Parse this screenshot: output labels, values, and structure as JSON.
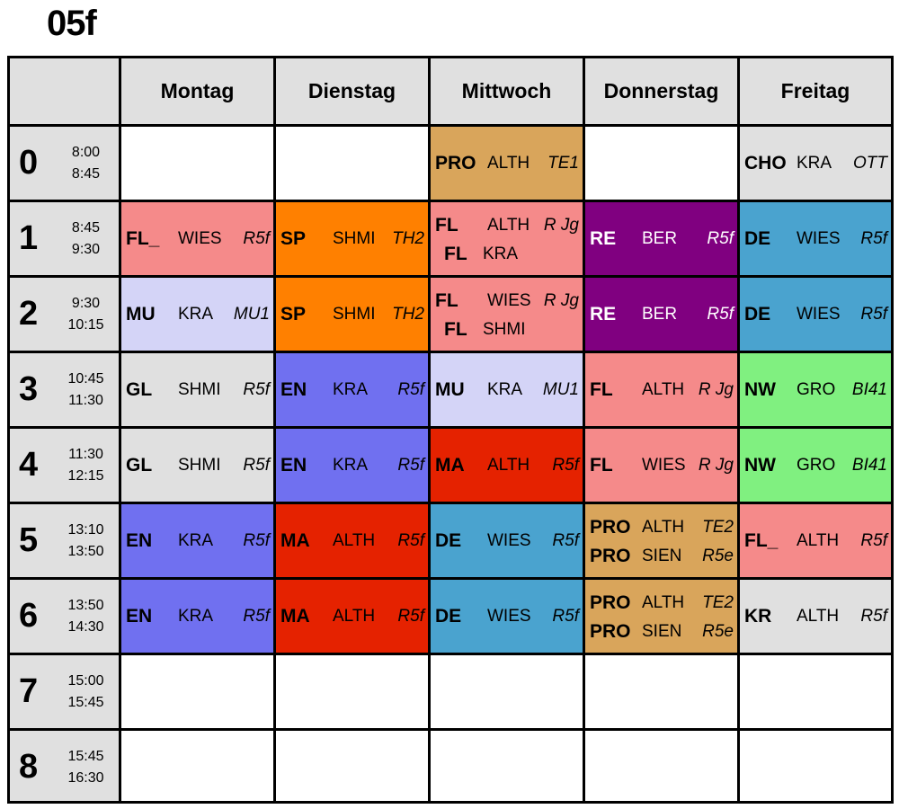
{
  "title": "05f",
  "days": [
    "Montag",
    "Dienstag",
    "Mittwoch",
    "Donnerstag",
    "Freitag"
  ],
  "periods": [
    {
      "num": "0",
      "start": "8:00",
      "end": "8:45"
    },
    {
      "num": "1",
      "start": "8:45",
      "end": "9:30"
    },
    {
      "num": "2",
      "start": "9:30",
      "end": "10:15"
    },
    {
      "num": "3",
      "start": "10:45",
      "end": "11:30"
    },
    {
      "num": "4",
      "start": "11:30",
      "end": "12:15"
    },
    {
      "num": "5",
      "start": "13:10",
      "end": "13:50"
    },
    {
      "num": "6",
      "start": "13:50",
      "end": "14:30"
    },
    {
      "num": "7",
      "start": "15:00",
      "end": "15:45"
    },
    {
      "num": "8",
      "start": "15:45",
      "end": "16:30"
    }
  ],
  "colors": {
    "grey": "#e0e0e0",
    "white": "#ffffff",
    "tan": "#d9a55b",
    "pink": "#f58a8a",
    "orange": "#ff8000",
    "purple": "#800080",
    "blue": "#4aa3cf",
    "lavender": "#d4d4f7",
    "periwinkle": "#7070f0",
    "red": "#e52200",
    "green": "#80f080"
  },
  "schedule": [
    [
      {
        "color": "white",
        "entries": []
      },
      {
        "color": "white",
        "entries": []
      },
      {
        "color": "tan",
        "entries": [
          {
            "subject": "PRO",
            "teacher": "ALTH",
            "room": "TE1"
          }
        ]
      },
      {
        "color": "white",
        "entries": []
      },
      {
        "color": "grey",
        "entries": [
          {
            "subject": "CHO",
            "teacher": "KRA",
            "room": "OTT"
          }
        ]
      }
    ],
    [
      {
        "color": "pink",
        "entries": [
          {
            "subject": "FL_",
            "teacher": "WIES",
            "room": "R5f"
          }
        ]
      },
      {
        "color": "orange",
        "entries": [
          {
            "subject": "SP",
            "teacher": "SHMI",
            "room": "TH2"
          }
        ]
      },
      {
        "color": "pink",
        "entries": [
          {
            "subject": "FL",
            "teacher": "ALTH",
            "room": "R Jg"
          },
          {
            "subject": "FL",
            "teacher": "KRA",
            "room": ""
          }
        ]
      },
      {
        "color": "purple",
        "dark": true,
        "entries": [
          {
            "subject": "RE",
            "teacher": "BER",
            "room": "R5f"
          }
        ]
      },
      {
        "color": "blue",
        "entries": [
          {
            "subject": "DE",
            "teacher": "WIES",
            "room": "R5f"
          }
        ]
      }
    ],
    [
      {
        "color": "lavender",
        "entries": [
          {
            "subject": "MU",
            "teacher": "KRA",
            "room": "MU1"
          }
        ]
      },
      {
        "color": "orange",
        "entries": [
          {
            "subject": "SP",
            "teacher": "SHMI",
            "room": "TH2"
          }
        ]
      },
      {
        "color": "pink",
        "entries": [
          {
            "subject": "FL",
            "teacher": "WIES",
            "room": "R Jg"
          },
          {
            "subject": "FL",
            "teacher": "SHMI",
            "room": ""
          }
        ]
      },
      {
        "color": "purple",
        "dark": true,
        "entries": [
          {
            "subject": "RE",
            "teacher": "BER",
            "room": "R5f"
          }
        ]
      },
      {
        "color": "blue",
        "entries": [
          {
            "subject": "DE",
            "teacher": "WIES",
            "room": "R5f"
          }
        ]
      }
    ],
    [
      {
        "color": "grey",
        "entries": [
          {
            "subject": "GL",
            "teacher": "SHMI",
            "room": "R5f"
          }
        ]
      },
      {
        "color": "periwinkle",
        "entries": [
          {
            "subject": "EN",
            "teacher": "KRA",
            "room": "R5f"
          }
        ]
      },
      {
        "color": "lavender",
        "entries": [
          {
            "subject": "MU",
            "teacher": "KRA",
            "room": "MU1"
          }
        ]
      },
      {
        "color": "pink",
        "entries": [
          {
            "subject": "FL",
            "teacher": "ALTH",
            "room": "R Jg"
          }
        ]
      },
      {
        "color": "green",
        "entries": [
          {
            "subject": "NW",
            "teacher": "GRO",
            "room": "BI41"
          }
        ]
      }
    ],
    [
      {
        "color": "grey",
        "entries": [
          {
            "subject": "GL",
            "teacher": "SHMI",
            "room": "R5f"
          }
        ]
      },
      {
        "color": "periwinkle",
        "entries": [
          {
            "subject": "EN",
            "teacher": "KRA",
            "room": "R5f"
          }
        ]
      },
      {
        "color": "red",
        "entries": [
          {
            "subject": "MA",
            "teacher": "ALTH",
            "room": "R5f"
          }
        ]
      },
      {
        "color": "pink",
        "entries": [
          {
            "subject": "FL",
            "teacher": "WIES",
            "room": "R Jg"
          }
        ]
      },
      {
        "color": "green",
        "entries": [
          {
            "subject": "NW",
            "teacher": "GRO",
            "room": "BI41"
          }
        ]
      }
    ],
    [
      {
        "color": "periwinkle",
        "entries": [
          {
            "subject": "EN",
            "teacher": "KRA",
            "room": "R5f"
          }
        ]
      },
      {
        "color": "red",
        "entries": [
          {
            "subject": "MA",
            "teacher": "ALTH",
            "room": "R5f"
          }
        ]
      },
      {
        "color": "blue",
        "entries": [
          {
            "subject": "DE",
            "teacher": "WIES",
            "room": "R5f"
          }
        ]
      },
      {
        "color": "tan",
        "entries": [
          {
            "subject": "PRO",
            "teacher": "ALTH",
            "room": "TE2"
          },
          {
            "subject": "PRO",
            "teacher": "SIEN",
            "room": "R5e"
          }
        ]
      },
      {
        "color": "pink",
        "entries": [
          {
            "subject": "FL_",
            "teacher": "ALTH",
            "room": "R5f"
          }
        ]
      }
    ],
    [
      {
        "color": "periwinkle",
        "entries": [
          {
            "subject": "EN",
            "teacher": "KRA",
            "room": "R5f"
          }
        ]
      },
      {
        "color": "red",
        "entries": [
          {
            "subject": "MA",
            "teacher": "ALTH",
            "room": "R5f"
          }
        ]
      },
      {
        "color": "blue",
        "entries": [
          {
            "subject": "DE",
            "teacher": "WIES",
            "room": "R5f"
          }
        ]
      },
      {
        "color": "tan",
        "entries": [
          {
            "subject": "PRO",
            "teacher": "ALTH",
            "room": "TE2"
          },
          {
            "subject": "PRO",
            "teacher": "SIEN",
            "room": "R5e"
          }
        ]
      },
      {
        "color": "grey",
        "entries": [
          {
            "subject": "KR",
            "teacher": "ALTH",
            "room": "R5f"
          }
        ]
      }
    ],
    [
      {
        "color": "white",
        "entries": []
      },
      {
        "color": "white",
        "entries": []
      },
      {
        "color": "white",
        "entries": []
      },
      {
        "color": "white",
        "entries": []
      },
      {
        "color": "white",
        "entries": []
      }
    ],
    [
      {
        "color": "white",
        "entries": []
      },
      {
        "color": "white",
        "entries": []
      },
      {
        "color": "white",
        "entries": []
      },
      {
        "color": "white",
        "entries": []
      },
      {
        "color": "white",
        "entries": []
      }
    ]
  ]
}
